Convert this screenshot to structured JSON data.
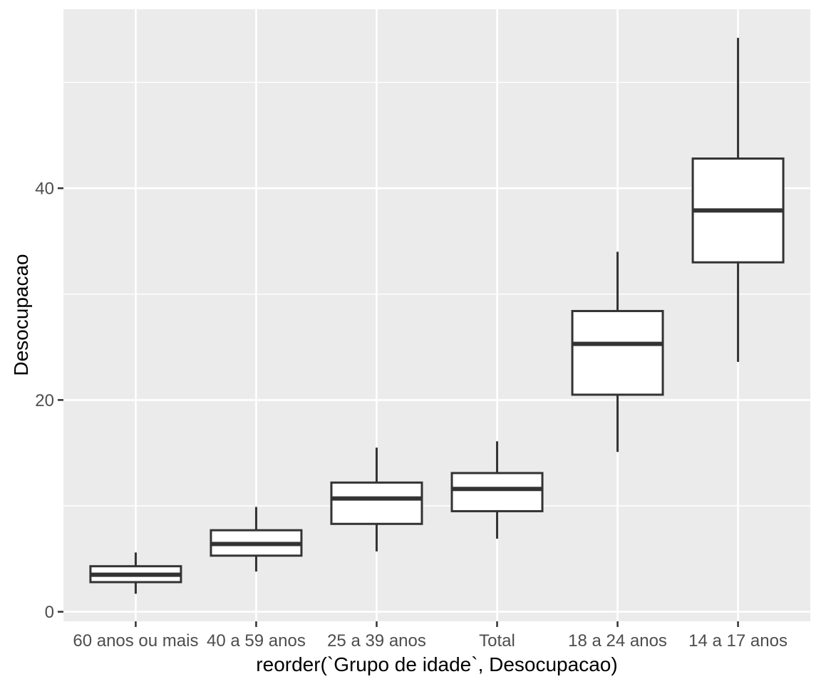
{
  "chart_data": {
    "type": "boxplot",
    "title": "",
    "xlabel": "reorder(`Grupo de idade`, Desocupacao)",
    "ylabel": "Desocupacao",
    "categories": [
      "60 anos ou mais",
      "40 a 59 anos",
      "25 a 39 anos",
      "Total",
      "18 a 24 anos",
      "14 a 17 anos"
    ],
    "series": [
      {
        "category": "60 anos ou mais",
        "whisker_low": 1.7,
        "q1": 2.8,
        "median": 3.5,
        "q3": 4.3,
        "whisker_high": 5.6
      },
      {
        "category": "40 a 59 anos",
        "whisker_low": 3.8,
        "q1": 5.3,
        "median": 6.4,
        "q3": 7.7,
        "whisker_high": 9.9
      },
      {
        "category": "25 a 39 anos",
        "whisker_low": 5.7,
        "q1": 8.3,
        "median": 10.7,
        "q3": 12.2,
        "whisker_high": 15.5
      },
      {
        "category": "Total",
        "whisker_low": 6.9,
        "q1": 9.5,
        "median": 11.6,
        "q3": 13.1,
        "whisker_high": 16.1
      },
      {
        "category": "18 a 24 anos",
        "whisker_low": 15.1,
        "q1": 20.5,
        "median": 25.3,
        "q3": 28.4,
        "whisker_high": 34.0
      },
      {
        "category": "14 a 17 anos",
        "whisker_low": 23.6,
        "q1": 33.0,
        "median": 37.9,
        "q3": 42.8,
        "whisker_high": 54.2
      }
    ],
    "y_major_ticks": [
      0,
      20,
      40
    ],
    "y_tick_labels": [
      "0",
      "20",
      "40"
    ],
    "y_minor_gridlines": [
      10,
      30,
      50
    ],
    "ylim": [
      -0.9,
      56.9
    ],
    "grid": true,
    "legend_position": "none"
  },
  "colors": {
    "figure_background": "#FFFFFF",
    "panel_background": "#EBEBEB",
    "grid_major": "#FFFFFF",
    "grid_minor": "#FFFFFF",
    "box_fill": "#FFFFFF",
    "box_stroke": "#333333",
    "median_stroke": "#333333",
    "whisker_stroke": "#333333",
    "tick_mark": "#333333",
    "tick_label": "#4D4D4D",
    "axis_title": "#000000"
  }
}
